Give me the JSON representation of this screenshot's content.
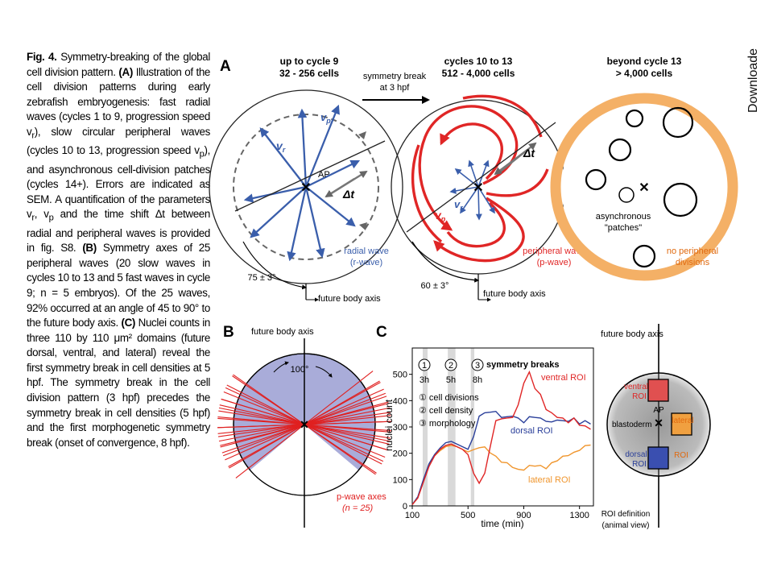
{
  "watermark": "Downloade",
  "caption": {
    "fig_label": "Fig. 4.",
    "title": "Symmetry-breaking of the global cell division pattern.",
    "A_label": "(A)",
    "A_text": "Illustration of the cell division patterns during early zebrafish embryogenesis: fast radial waves (cycles 1 to 9, progression speed v",
    "A_sub1": "r",
    "A_text2": "), slow circular peripheral waves (cycles 10 to 13, progression speed v",
    "A_sub2": "p",
    "A_text3": "), and asynchronous cell-division patches (cycles 14+). Errors are indicated as SEM. A quantification of the parameters v",
    "A_sub3": "r",
    "A_text4": ", v",
    "A_sub4": "p",
    "A_text5": " and the time shift Δt between radial and peripheral waves is provided in fig. S8.",
    "B_label": "(B)",
    "B_text": "Symmetry axes of 25 peripheral waves (20 slow waves in cycles 10 to 13 and 5 fast waves in cycle 9; n = 5 embryos). Of the 25 waves, 92% occurred at an angle of 45 to 90° to the future body axis.",
    "C_label": "(C)",
    "C_text": "Nuclei counts in three 110 by 110 μm² domains (future dorsal, ventral, and lateral) reveal the first symmetry break in cell densities at 5 hpf. The symmetry break in the cell division pattern (3 hpf) precedes the symmetry break in cell densities (5 hpf) and the first morphogenetic symmetry break (onset of convergence, 8 hpf)."
  },
  "panelA": {
    "label": "A",
    "stage1_title": "up to cycle 9",
    "stage1_cells": "32 - 256 cells",
    "stage2_title": "cycles 10 to 13",
    "stage2_cells": "512 - 4,000 cells",
    "stage3_title": "beyond cycle 13",
    "stage3_cells": "> 4,000 cells",
    "arrow_label1": "symmetry break",
    "arrow_label2": "at 3 hpf",
    "vr": "v",
    "vr_sub": "r",
    "vp": "v",
    "vp_sub": "p",
    "ap": "AP",
    "dt": "Δt",
    "radial_wave1": "radial wave",
    "radial_wave2": "(r-wave)",
    "angle1": "75 ± 3°",
    "angle2": "60 ± 3°",
    "future_axis": "future body axis",
    "peripheral_wave1": "peripheral wave",
    "peripheral_wave2": "(p-wave)",
    "async1": "asynchronous",
    "async2": "\"patches\"",
    "no_periph1": "no peripheral",
    "no_periph2": "divisions",
    "colors": {
      "blue": "#3a5eab",
      "red": "#e02626",
      "orange": "#f4b066",
      "gray": "#666666"
    }
  },
  "panelB": {
    "label": "B",
    "future_axis": "future body axis",
    "angle": "100°",
    "legend1": "p-wave axes",
    "legend2": "(n = 25)",
    "axes_count": 25,
    "colors": {
      "fill": "#a9acd9",
      "line": "#e02020"
    }
  },
  "panelC": {
    "label": "C",
    "ylabel": "nuclei count",
    "xlabel": "time (min)",
    "y_ticks": [
      "0",
      "100",
      "200",
      "300",
      "400",
      "500"
    ],
    "x_ticks": [
      "100",
      "500",
      "900",
      "1300"
    ],
    "sym_breaks_title": "symmetry breaks",
    "break_numbers": [
      "1",
      "2",
      "3"
    ],
    "break_times": [
      "3h",
      "5h",
      "8h"
    ],
    "legend_items": [
      "① cell divisions",
      "② cell density",
      "③ morphology"
    ],
    "series_labels": {
      "ventral": "ventral ROI",
      "dorsal": "dorsal ROI",
      "lateral": "lateral ROI"
    },
    "embryo_future_axis": "future body axis",
    "roi_ventral": [
      "ventral",
      "ROI"
    ],
    "roi_dorsal": [
      "dorsal",
      "ROI"
    ],
    "roi_lateral": [
      "lateral",
      "ROI"
    ],
    "ap": "AP",
    "blastoderm": "blastoderm",
    "roi_def1": "ROI definition",
    "roi_def2": "(animal view)",
    "colors": {
      "ventral": "#e02626",
      "dorsal": "#2a3f9a",
      "lateral": "#f0962e"
    }
  },
  "chart_data": {
    "type": "line",
    "xlabel": "time (min)",
    "ylabel": "nuclei count",
    "xlim": [
      100,
      1400
    ],
    "ylim": [
      0,
      600
    ],
    "x_ticks": [
      100,
      500,
      900,
      1300
    ],
    "y_ticks": [
      0,
      100,
      200,
      300,
      400,
      500
    ],
    "shaded_bands": [
      [
        175,
        210
      ],
      [
        355,
        410
      ],
      [
        520,
        545
      ]
    ],
    "series": [
      {
        "name": "ventral ROI",
        "x": [
          100,
          140,
          180,
          220,
          260,
          300,
          340,
          380,
          420,
          460,
          500,
          540,
          580,
          620,
          660,
          700,
          740,
          780,
          820,
          860,
          900,
          940,
          980,
          1020,
          1060,
          1100,
          1140,
          1180,
          1220,
          1260,
          1300,
          1340,
          1380
        ],
        "y": [
          5,
          30,
          90,
          150,
          190,
          215,
          230,
          235,
          225,
          215,
          195,
          120,
          90,
          120,
          230,
          320,
          335,
          330,
          340,
          380,
          470,
          505,
          450,
          420,
          370,
          350,
          340,
          330,
          320,
          330,
          310,
          300,
          295
        ]
      },
      {
        "name": "dorsal ROI",
        "x": [
          100,
          140,
          180,
          220,
          260,
          300,
          340,
          380,
          420,
          460,
          500,
          540,
          580,
          620,
          660,
          700,
          740,
          780,
          820,
          860,
          900,
          940,
          980,
          1020,
          1060,
          1100,
          1140,
          1180,
          1220,
          1260,
          1300,
          1340,
          1380
        ],
        "y": [
          5,
          35,
          100,
          160,
          195,
          220,
          240,
          245,
          235,
          225,
          215,
          260,
          345,
          350,
          360,
          355,
          340,
          335,
          345,
          330,
          320,
          335,
          340,
          330,
          325,
          315,
          330,
          320,
          325,
          330,
          315,
          320,
          315
        ]
      },
      {
        "name": "lateral ROI",
        "x": [
          100,
          140,
          180,
          220,
          260,
          300,
          340,
          380,
          420,
          460,
          500,
          540,
          580,
          620,
          660,
          700,
          740,
          780,
          820,
          860,
          900,
          940,
          980,
          1020,
          1060,
          1100,
          1140,
          1180,
          1220,
          1260,
          1300,
          1340,
          1380
        ],
        "y": [
          5,
          30,
          95,
          155,
          190,
          210,
          225,
          230,
          225,
          215,
          205,
          210,
          225,
          220,
          205,
          185,
          170,
          160,
          150,
          135,
          140,
          150,
          155,
          150,
          145,
          160,
          175,
          185,
          195,
          200,
          215,
          225,
          235
        ]
      }
    ]
  }
}
